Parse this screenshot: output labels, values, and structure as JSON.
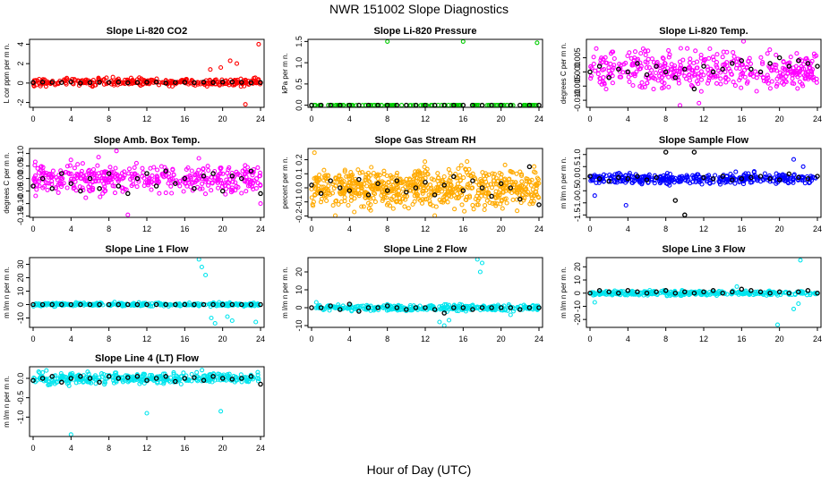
{
  "figure": {
    "title": "NWR  151002  Slope Diagnostics",
    "xlabel": "Hour of Day (UTC)"
  },
  "colors": {
    "co2": "#ff0000",
    "pressure": "#00cc00",
    "temp": "#ff00ff",
    "rh": "#ffaa00",
    "flow": "#0000ff",
    "line": "#00e5ee",
    "mean": "#000000"
  },
  "chart_data": [
    {
      "id": "co2",
      "type": "scatter",
      "title": "Slope Li-820 CO2",
      "ylabel": "L cor ppm per m n.",
      "xlim": [
        0,
        24
      ],
      "xticks": [
        0,
        4,
        8,
        12,
        16,
        20,
        24
      ],
      "ylim": [
        -2.5,
        4.5
      ],
      "yticks": [
        -2,
        0,
        2,
        4
      ],
      "yticklabels": [
        "-2",
        "0",
        "2",
        "4"
      ],
      "color_key": "co2",
      "n": 300,
      "center": 0.1,
      "spread": 0.28,
      "outliers": [
        {
          "x": 23.8,
          "y": 4.0
        },
        {
          "x": 22.4,
          "y": -2.2
        },
        {
          "x": 20.8,
          "y": 2.3
        },
        {
          "x": 21.5,
          "y": 2.0
        },
        {
          "x": 19.8,
          "y": 1.6
        },
        {
          "x": 18.7,
          "y": 1.4
        }
      ],
      "means": [
        0.05,
        0.1,
        0.08,
        0.06,
        0.12,
        0.0,
        0.05,
        0.08,
        0.07,
        0.1,
        0.02,
        0.05,
        0.09,
        0.1,
        0.0,
        0.06,
        0.08,
        0.04,
        0.1,
        0.05,
        0.1,
        0.12,
        0.08,
        0.03,
        0.05
      ]
    },
    {
      "id": "pressure",
      "type": "scatter",
      "title": "Slope Li-820 Pressure",
      "ylabel": "kPa per m n.",
      "xlim": [
        0,
        24
      ],
      "xticks": [
        0,
        4,
        8,
        12,
        16,
        20,
        24
      ],
      "ylim": [
        -0.05,
        1.55
      ],
      "yticks": [
        0,
        0.5,
        1,
        1.5
      ],
      "yticklabels": [
        "0.0",
        "0.5",
        "1.0",
        "1.5"
      ],
      "color_key": "pressure",
      "n": 120,
      "center": 0.0,
      "spread": 0.002,
      "outliers": [
        {
          "x": 8,
          "y": 1.5
        },
        {
          "x": 16,
          "y": 1.5
        },
        {
          "x": 23.8,
          "y": 1.47
        },
        {
          "x": 0.3,
          "y": 0.0
        }
      ],
      "means": [
        0,
        0,
        0,
        0,
        0,
        0,
        0,
        0,
        0,
        0,
        0,
        0,
        0,
        0,
        0,
        0,
        0,
        0,
        0,
        0,
        0,
        0,
        0,
        0,
        0
      ]
    },
    {
      "id": "li820temp",
      "type": "scatter",
      "title": "Slope Li-820 Temp.",
      "ylabel": "degrees C per m n.",
      "xlim": [
        0,
        24
      ],
      "xticks": [
        0,
        4,
        8,
        12,
        16,
        20,
        24
      ],
      "ylim": [
        -0.0125,
        0.0115
      ],
      "yticks": [
        -0.01,
        -0.005,
        0,
        0.005
      ],
      "yticklabels": [
        "-0.010",
        "-0.005",
        "0.000",
        "0.005"
      ],
      "color_key": "temp",
      "n": 420,
      "center": 0.0005,
      "spread": 0.0045,
      "outliers": [
        {
          "x": 9.5,
          "y": -0.0118
        },
        {
          "x": 11.5,
          "y": -0.011
        },
        {
          "x": 16.2,
          "y": 0.0108
        }
      ],
      "means": [
        0.0,
        0.002,
        -0.002,
        0.001,
        0.0,
        0.003,
        -0.001,
        0.002,
        0.0,
        -0.002,
        0.001,
        -0.006,
        0.002,
        0.0,
        0.001,
        0.003,
        0.004,
        0.001,
        0.0,
        0.003,
        0.005,
        0.002,
        0.004,
        0.003,
        0.002
      ]
    },
    {
      "id": "ambbox",
      "type": "scatter",
      "title": "Slope Amb. Box Temp.",
      "ylabel": "degrees C per m n.",
      "xlim": [
        0,
        24
      ],
      "xticks": [
        0,
        4,
        8,
        12,
        16,
        20,
        24
      ],
      "ylim": [
        -0.155,
        0.12
      ],
      "yticks": [
        -0.15,
        -0.1,
        -0.05,
        0,
        0.05,
        0.1
      ],
      "yticklabels": [
        "-0.15",
        "-0.10",
        "-0.05",
        "0.00",
        "0.05",
        "0.10"
      ],
      "color_key": "temp",
      "n": 420,
      "center": 0.0,
      "spread": 0.042,
      "outliers": [
        {
          "x": 10,
          "y": -0.145
        },
        {
          "x": 8.8,
          "y": 0.11
        },
        {
          "x": 24,
          "y": -0.1
        }
      ],
      "means": [
        -0.03,
        0.0,
        -0.04,
        0.02,
        -0.02,
        -0.05,
        0.0,
        -0.04,
        0.02,
        -0.03,
        -0.06,
        0.0,
        0.02,
        -0.03,
        0.03,
        -0.02,
        0.0,
        -0.04,
        0.01,
        0.02,
        -0.05,
        0.01,
        0.0,
        0.03,
        -0.06
      ]
    },
    {
      "id": "rh",
      "type": "scatter",
      "title": "Slope Gas Stream RH",
      "ylabel": "percent per m n.",
      "xlim": [
        0,
        24
      ],
      "xticks": [
        0,
        4,
        8,
        12,
        16,
        20,
        24
      ],
      "ylim": [
        -0.21,
        0.28
      ],
      "yticks": [
        -0.2,
        -0.1,
        0,
        0.1,
        0.2
      ],
      "yticklabels": [
        "-0.2",
        "-0.1",
        "0.0",
        "0.1",
        "0.2"
      ],
      "color_key": "rh",
      "n": 700,
      "center": 0.0,
      "spread": 0.095,
      "outliers": [
        {
          "x": 0.3,
          "y": 0.25
        },
        {
          "x": 2.5,
          "y": -0.2
        },
        {
          "x": 13,
          "y": -0.2
        }
      ],
      "means": [
        0.02,
        -0.04,
        0.05,
        0.0,
        -0.02,
        0.06,
        -0.05,
        0.03,
        -0.02,
        0.05,
        -0.03,
        0.0,
        0.04,
        -0.05,
        0.02,
        0.08,
        -0.02,
        0.05,
        0.0,
        -0.06,
        0.03,
        0.0,
        -0.08,
        0.15,
        -0.12
      ]
    },
    {
      "id": "sampleflow",
      "type": "scatter",
      "title": "Slope Sample Flow",
      "ylabel": "m l/m n per m n.",
      "xlim": [
        0,
        24
      ],
      "xticks": [
        0,
        4,
        8,
        12,
        16,
        20,
        24
      ],
      "ylim": [
        -1.6,
        1.25
      ],
      "yticks": [
        -1.5,
        -1,
        -0.5,
        0,
        0.5,
        1
      ],
      "yticklabels": [
        "-1.5",
        "-1.0",
        "-0.5",
        "0.0",
        "0.5",
        "1.0"
      ],
      "color_key": "flow",
      "n": 360,
      "center": 0.0,
      "spread": 0.15,
      "outliers": [
        {
          "x": 3.8,
          "y": -1.1
        },
        {
          "x": 21.5,
          "y": 0.8
        },
        {
          "x": 22.5,
          "y": 0.5
        },
        {
          "x": 0.5,
          "y": -0.7
        }
      ],
      "means": [
        0.1,
        0.0,
        -0.1,
        0.05,
        0.0,
        0.1,
        -0.05,
        0.05,
        1.1,
        -0.9,
        -1.5,
        1.1,
        0.05,
        0.0,
        0.1,
        -0.05,
        0.0,
        0.05,
        0.1,
        0.0,
        -0.05,
        0.2,
        0.05,
        0.0,
        0.1
      ]
    },
    {
      "id": "line1",
      "type": "scatter",
      "title": "Slope Line 1 Flow",
      "ylabel": "m l/m n per m n.",
      "xlim": [
        0,
        24
      ],
      "xticks": [
        0,
        4,
        8,
        12,
        16,
        20,
        24
      ],
      "ylim": [
        -17,
        35
      ],
      "yticks": [
        -10,
        0,
        10,
        20,
        30
      ],
      "yticklabels": [
        "-10",
        "0",
        "10",
        "20",
        "30"
      ],
      "color_key": "line",
      "n": 320,
      "center": 0.0,
      "spread": 0.9,
      "outliers": [
        {
          "x": 17.5,
          "y": 34
        },
        {
          "x": 17.8,
          "y": 28
        },
        {
          "x": 18.2,
          "y": 22
        },
        {
          "x": 18.8,
          "y": -10
        },
        {
          "x": 19.2,
          "y": -14
        },
        {
          "x": 20.5,
          "y": -9
        },
        {
          "x": 23.5,
          "y": -13
        },
        {
          "x": 21,
          "y": -12
        }
      ],
      "means": [
        0,
        0,
        0,
        0,
        0,
        0,
        0,
        0,
        0,
        0,
        0,
        0,
        0,
        0,
        0,
        0,
        0,
        0,
        0,
        0,
        0,
        0,
        0,
        0,
        0
      ]
    },
    {
      "id": "line2",
      "type": "scatter",
      "title": "Slope Line 2 Flow",
      "ylabel": "m l/m n per m n.",
      "xlim": [
        0,
        24
      ],
      "xticks": [
        0,
        4,
        8,
        12,
        16,
        20,
        24
      ],
      "ylim": [
        -11,
        28
      ],
      "yticks": [
        -10,
        0,
        10,
        20
      ],
      "yticklabels": [
        "-10",
        "0",
        "10",
        "20"
      ],
      "color_key": "line",
      "n": 320,
      "center": 0.0,
      "spread": 1.2,
      "outliers": [
        {
          "x": 17.5,
          "y": 27
        },
        {
          "x": 17.8,
          "y": 20
        },
        {
          "x": 18,
          "y": 25
        },
        {
          "x": 13.5,
          "y": -8
        },
        {
          "x": 14,
          "y": -10
        },
        {
          "x": 14.5,
          "y": -7
        },
        {
          "x": 21,
          "y": -4
        },
        {
          "x": 0.5,
          "y": 3
        }
      ],
      "means": [
        0,
        0,
        1,
        -1,
        2,
        -2,
        0,
        0,
        1,
        0,
        -1,
        0,
        0,
        -1,
        -3,
        0,
        0,
        -1,
        0,
        0,
        0,
        0,
        -1,
        0,
        0
      ]
    },
    {
      "id": "line3",
      "type": "scatter",
      "title": "Slope Line 3 Flow",
      "ylabel": "m l/m n per m n.",
      "xlim": [
        0,
        24
      ],
      "xticks": [
        0,
        4,
        8,
        12,
        16,
        20,
        24
      ],
      "ylim": [
        -26,
        27
      ],
      "yticks": [
        -20,
        -10,
        0,
        10,
        20
      ],
      "yticklabels": [
        "-20",
        "-10",
        "0",
        "10",
        "20"
      ],
      "color_key": "line",
      "n": 300,
      "center": 0.0,
      "spread": 1.3,
      "outliers": [
        {
          "x": 22.2,
          "y": 25
        },
        {
          "x": 19.8,
          "y": -24
        },
        {
          "x": 21.5,
          "y": -12
        },
        {
          "x": 22,
          "y": -8
        },
        {
          "x": 0.5,
          "y": -7
        },
        {
          "x": 15.5,
          "y": 5
        }
      ],
      "means": [
        0,
        2,
        1,
        0,
        2,
        1,
        0,
        1,
        2,
        0,
        1,
        0,
        1,
        2,
        0,
        1,
        3,
        2,
        1,
        0,
        1,
        0,
        1,
        2,
        0
      ]
    },
    {
      "id": "line4",
      "type": "scatter",
      "title": "Slope Line 4 (LT) Flow",
      "ylabel": "m l/m n per m n.",
      "xlim": [
        0,
        24
      ],
      "xticks": [
        0,
        4,
        8,
        12,
        16,
        20,
        24
      ],
      "ylim": [
        -1.5,
        0.3
      ],
      "yticks": [
        -1,
        -0.5,
        0
      ],
      "yticklabels": [
        "-1.0",
        "-0.5",
        "0.0"
      ],
      "color_key": "line",
      "n": 360,
      "center": 0.0,
      "spread": 0.1,
      "outliers": [
        {
          "x": 4,
          "y": -1.45
        },
        {
          "x": 12,
          "y": -0.9
        },
        {
          "x": 19.8,
          "y": -0.85
        },
        {
          "x": 1,
          "y": 0.15
        }
      ],
      "means": [
        -0.05,
        0.0,
        0.05,
        -0.1,
        0.0,
        0.05,
        0.0,
        -0.1,
        0.05,
        0.0,
        0.02,
        0.05,
        -0.05,
        0.0,
        0.05,
        -0.08,
        0.0,
        0.02,
        -0.05,
        0.05,
        0.0,
        -0.02,
        0.0,
        0.05,
        -0.15
      ]
    }
  ]
}
